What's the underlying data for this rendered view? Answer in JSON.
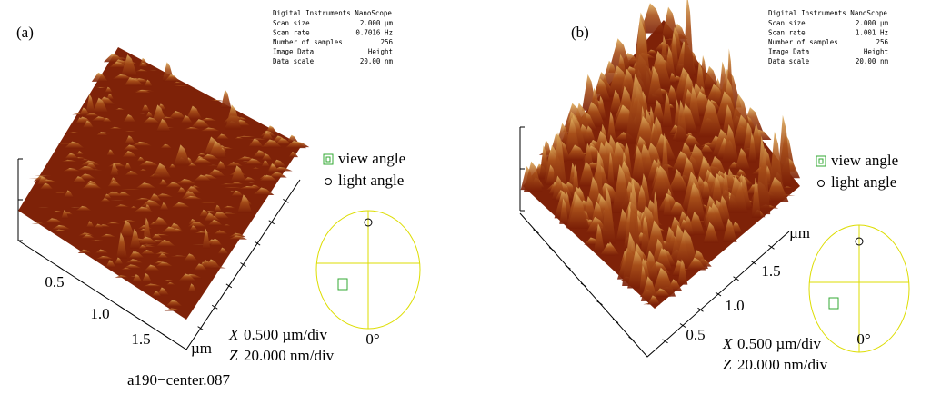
{
  "panels": [
    {
      "label": "(a)",
      "info": {
        "title": "Digital Instruments NanoScope",
        "rows": [
          [
            "Scan size",
            "2.000 µm"
          ],
          [
            "Scan rate",
            "0.7016 Hz"
          ],
          [
            "Number of samples",
            "256"
          ],
          [
            "Image Data",
            "Height"
          ],
          [
            "Data scale",
            "20.00 nm"
          ]
        ]
      },
      "axis_labels": [
        "0.5",
        "1.0",
        "1.5"
      ],
      "axis_unit": "µm",
      "legend": [
        "view angle",
        "light angle"
      ],
      "angle": "0°",
      "scale": [
        [
          "X",
          "0.500 µm/div"
        ],
        [
          "Z",
          "20.000 nm/div"
        ]
      ],
      "filename": "a190−center.087"
    },
    {
      "label": "(b)",
      "info": {
        "title": "Digital Instruments NanoScope",
        "rows": [
          [
            "Scan size",
            "2.000 µm"
          ],
          [
            "Scan rate",
            "1.001 Hz"
          ],
          [
            "Number of samples",
            "256"
          ],
          [
            "Image Data",
            "Height"
          ],
          [
            "Data scale",
            "20.00 nm"
          ]
        ]
      },
      "axis_labels": [
        "0.5",
        "1.0",
        "1.5"
      ],
      "axis_unit": "µm",
      "legend": [
        "view angle",
        "light angle"
      ],
      "angle": "0°",
      "scale": [
        [
          "X",
          "0.500 µm/div"
        ],
        [
          "Z",
          "20.000 nm/div"
        ]
      ]
    }
  ]
}
